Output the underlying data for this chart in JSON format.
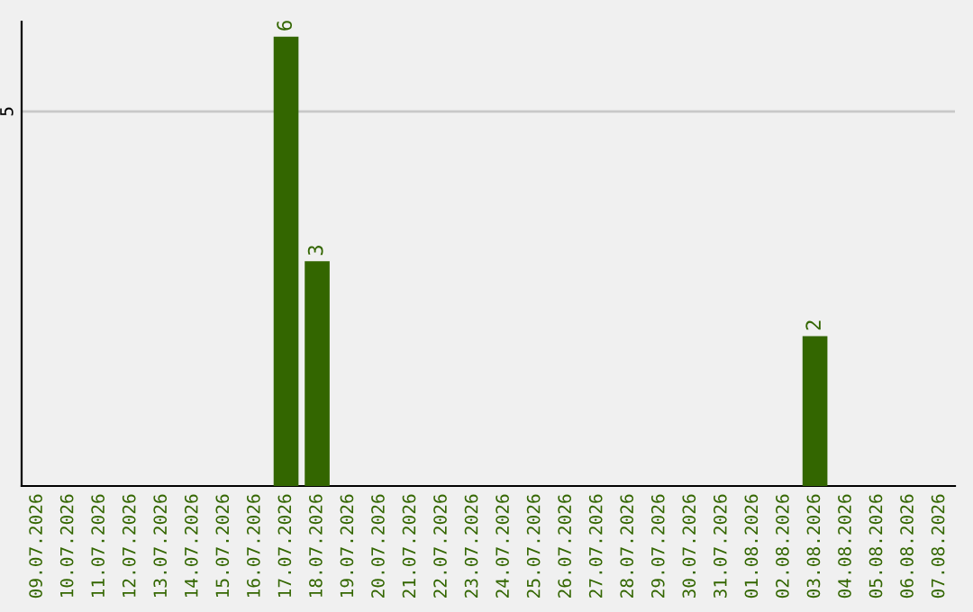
{
  "chart_data": {
    "type": "bar",
    "categories": [
      "09.07.2026",
      "10.07.2026",
      "11.07.2026",
      "12.07.2026",
      "13.07.2026",
      "14.07.2026",
      "15.07.2026",
      "16.07.2026",
      "17.07.2026",
      "18.07.2026",
      "19.07.2026",
      "20.07.2026",
      "21.07.2026",
      "22.07.2026",
      "23.07.2026",
      "24.07.2026",
      "25.07.2026",
      "26.07.2026",
      "27.07.2026",
      "28.07.2026",
      "29.07.2026",
      "30.07.2026",
      "31.07.2026",
      "01.08.2026",
      "02.08.2026",
      "03.08.2026",
      "04.08.2026",
      "05.08.2026",
      "06.08.2026",
      "07.08.2026"
    ],
    "values": [
      0,
      0,
      0,
      0,
      0,
      0,
      0,
      0,
      6,
      3,
      0,
      0,
      0,
      0,
      0,
      0,
      0,
      0,
      0,
      0,
      0,
      0,
      0,
      0,
      0,
      2,
      0,
      0,
      0,
      0
    ],
    "color": "#336600",
    "value_labels": [
      null,
      null,
      null,
      null,
      null,
      null,
      null,
      null,
      "6",
      "3",
      null,
      null,
      null,
      null,
      null,
      null,
      null,
      null,
      null,
      null,
      null,
      null,
      null,
      null,
      null,
      "2",
      null,
      null,
      null,
      null
    ],
    "ylim": [
      0,
      6.2
    ],
    "yticks": [
      5
    ],
    "grid": "y"
  }
}
